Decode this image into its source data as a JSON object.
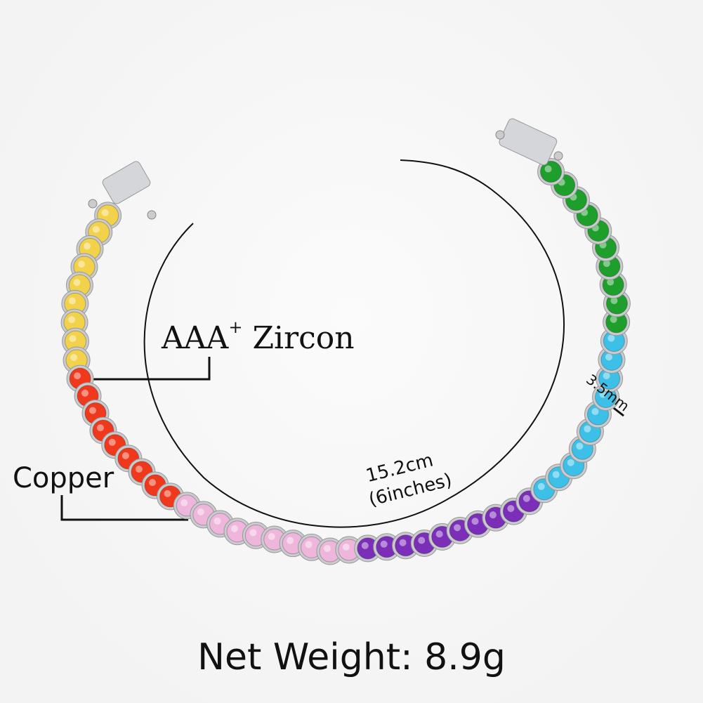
{
  "annotations": {
    "material_primary": "AAA",
    "material_sup": "+",
    "material_secondary": "Zircon",
    "base_metal": "Copper",
    "length_cm": "15.2cm",
    "length_in": "(6inches)",
    "stone_width": "3.5mm",
    "net_weight": "Net Weight: 8.9g"
  },
  "stone_colors": [
    {
      "name": "yellow",
      "hex": "#f2d24a",
      "count": 9
    },
    {
      "name": "red",
      "hex": "#f0391c",
      "count": 9
    },
    {
      "name": "pink",
      "hex": "#efb6dc",
      "count": 10
    },
    {
      "name": "purple",
      "hex": "#7b2fb8",
      "count": 10
    },
    {
      "name": "aqua",
      "hex": "#3cc0e8",
      "count": 10
    },
    {
      "name": "green",
      "hex": "#1e9e2a",
      "count": 10
    }
  ],
  "metal_color": "#c9cbcf"
}
